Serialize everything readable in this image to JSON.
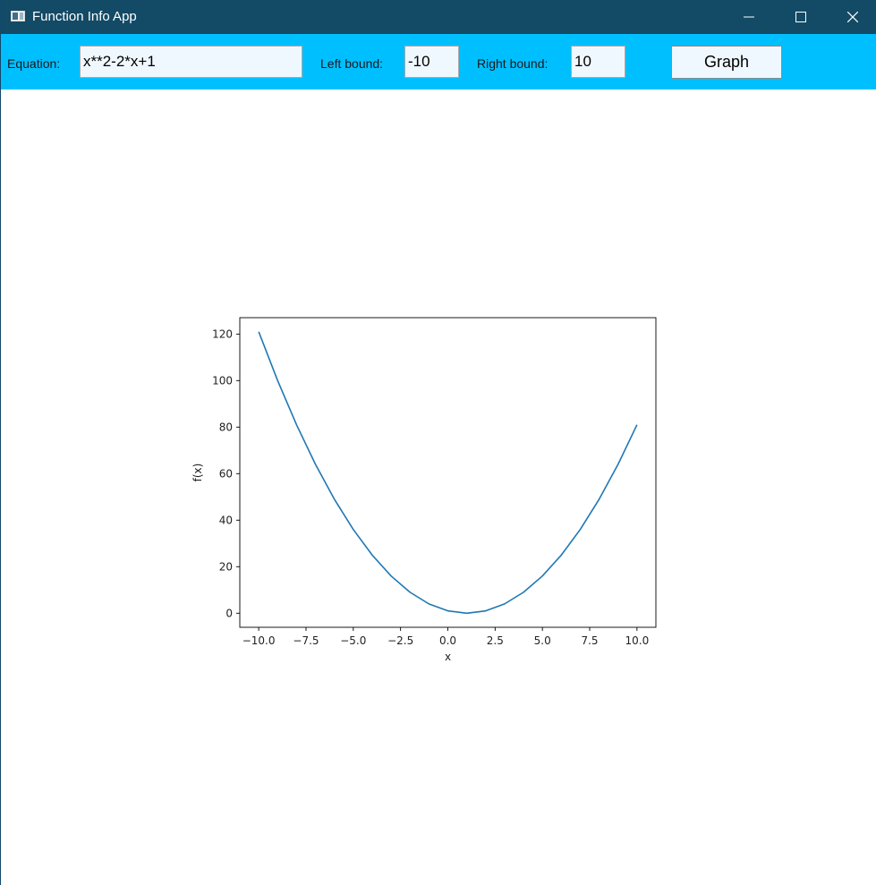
{
  "window": {
    "title": "Function Info App"
  },
  "toolbar": {
    "equation_label": "Equation:",
    "equation_value": "x**2-2*x+1",
    "left_label": "Left bound:",
    "left_value": "-10",
    "right_label": "Right bound:",
    "right_value": "10",
    "graph_label": "Graph"
  },
  "colors": {
    "titlebar": "#134a66",
    "toolbar": "#00bfff",
    "field_bg": "#f0f8ff",
    "line": "#1f77b4"
  },
  "chart_data": {
    "type": "line",
    "xlabel": "x",
    "ylabel": "f(x)",
    "xlim": [
      -11,
      11
    ],
    "ylim": [
      -6.05,
      127.05
    ],
    "xticks": [
      -10.0,
      -7.5,
      -5.0,
      -2.5,
      0.0,
      2.5,
      5.0,
      7.5,
      10.0
    ],
    "xtick_labels": [
      "−10.0",
      "−7.5",
      "−5.0",
      "−2.5",
      "0.0",
      "2.5",
      "5.0",
      "7.5",
      "10.0"
    ],
    "yticks": [
      0,
      20,
      40,
      60,
      80,
      100,
      120
    ],
    "ytick_labels": [
      "0",
      "20",
      "40",
      "60",
      "80",
      "100",
      "120"
    ],
    "grid": false,
    "series": [
      {
        "x": [
          -10,
          -9,
          -8,
          -7,
          -6,
          -5,
          -4,
          -3,
          -2,
          -1,
          0,
          1,
          2,
          3,
          4,
          5,
          6,
          7,
          8,
          9,
          10
        ],
        "y": [
          121,
          100,
          81,
          64,
          49,
          36,
          25,
          16,
          9,
          4,
          1,
          0,
          1,
          4,
          9,
          16,
          25,
          36,
          49,
          64,
          81
        ]
      }
    ]
  }
}
